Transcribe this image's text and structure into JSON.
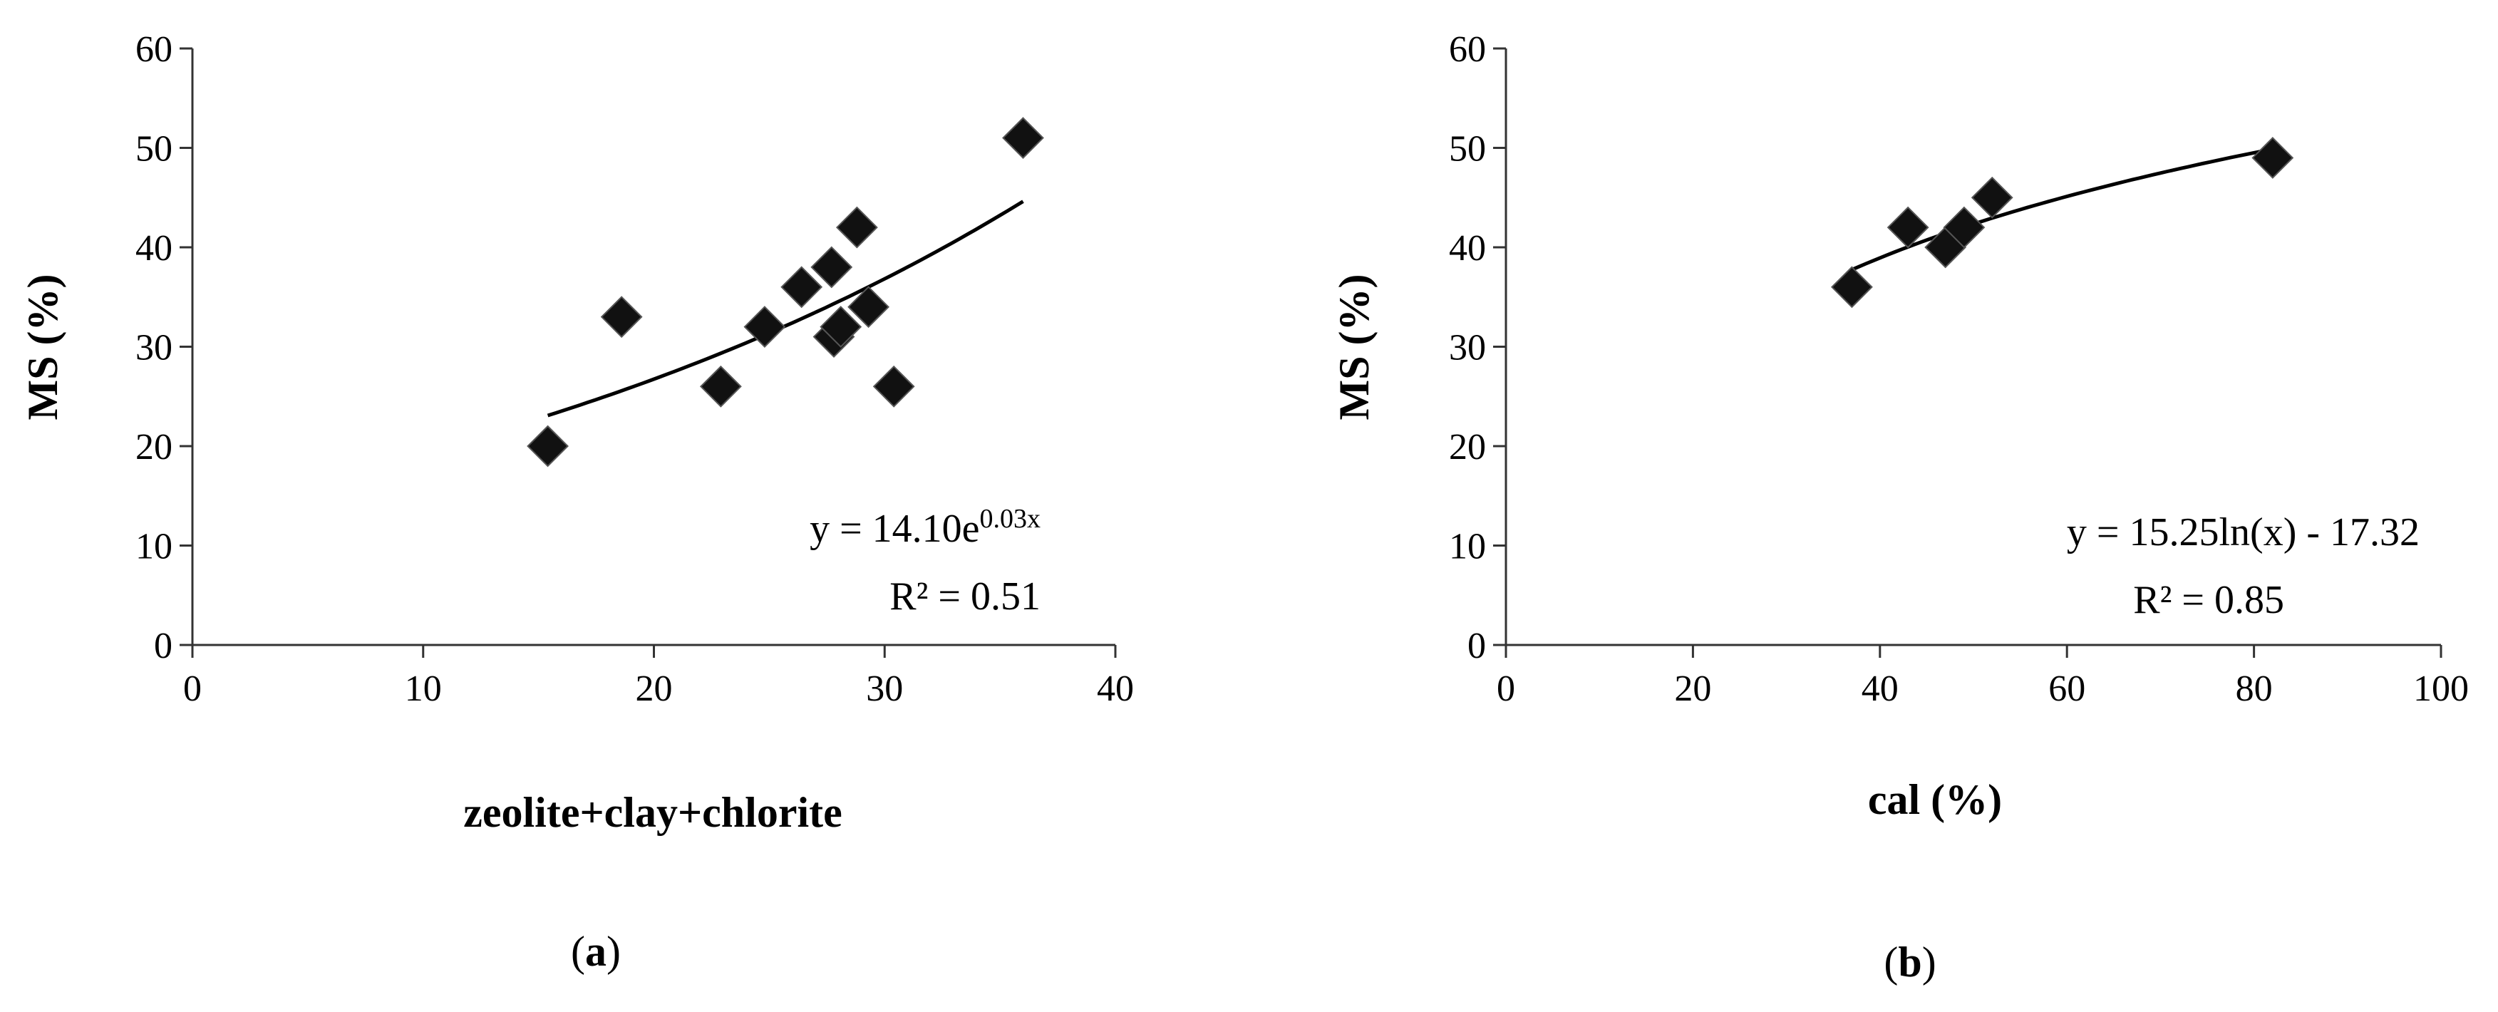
{
  "chart_data": [
    {
      "type": "scatter",
      "panel": "a",
      "xlabel": "zeolite+clay+chlorite",
      "ylabel": "MS (%)",
      "xlim": [
        0,
        40
      ],
      "ylim": [
        0,
        60
      ],
      "xticks": [
        0,
        10,
        20,
        30,
        40
      ],
      "yticks": [
        0,
        10,
        20,
        30,
        40,
        50,
        60
      ],
      "grid": false,
      "marker": "diamond",
      "marker_color": "#111111",
      "series": [
        {
          "points": [
            {
              "x": 15.4,
              "y": 20
            },
            {
              "x": 18.6,
              "y": 33
            },
            {
              "x": 22.9,
              "y": 26
            },
            {
              "x": 24.8,
              "y": 32
            },
            {
              "x": 26.4,
              "y": 36
            },
            {
              "x": 27.7,
              "y": 38
            },
            {
              "x": 27.8,
              "y": 31
            },
            {
              "x": 28.1,
              "y": 32
            },
            {
              "x": 28.8,
              "y": 42
            },
            {
              "x": 29.3,
              "y": 34
            },
            {
              "x": 30.4,
              "y": 26
            },
            {
              "x": 36.0,
              "y": 51
            }
          ]
        }
      ],
      "trendline": {
        "kind": "exponential",
        "a": 14.1,
        "b": 0.032,
        "x_range": [
          15.4,
          36.0
        ],
        "equation_prefix": "y = 14.10e",
        "equation_exponent": "0.03x",
        "r2": "R² = 0.51"
      }
    },
    {
      "type": "scatter",
      "panel": "b",
      "xlabel": "cal (%)",
      "ylabel": "MS (%)",
      "xlim": [
        0,
        100
      ],
      "ylim": [
        0,
        60
      ],
      "xticks": [
        0,
        20,
        40,
        60,
        80,
        100
      ],
      "yticks": [
        0,
        10,
        20,
        30,
        40,
        50,
        60
      ],
      "grid": false,
      "marker": "diamond",
      "marker_color": "#111111",
      "series": [
        {
          "points": [
            {
              "x": 37,
              "y": 36
            },
            {
              "x": 43,
              "y": 42
            },
            {
              "x": 47,
              "y": 40
            },
            {
              "x": 49,
              "y": 42
            },
            {
              "x": 52,
              "y": 45
            },
            {
              "x": 82,
              "y": 49
            }
          ]
        }
      ],
      "trendline": {
        "kind": "logarithmic",
        "a": 15.25,
        "b": -17.32,
        "x_range": [
          37,
          82
        ],
        "equation": "y = 15.25ln(x) - 17.32",
        "r2": "R² = 0.85"
      }
    }
  ],
  "panel_labels": {
    "a": {
      "open": "(",
      "letter": "a",
      "close": ")"
    },
    "b": {
      "open": "(",
      "letter": "b",
      "close": ")"
    }
  }
}
